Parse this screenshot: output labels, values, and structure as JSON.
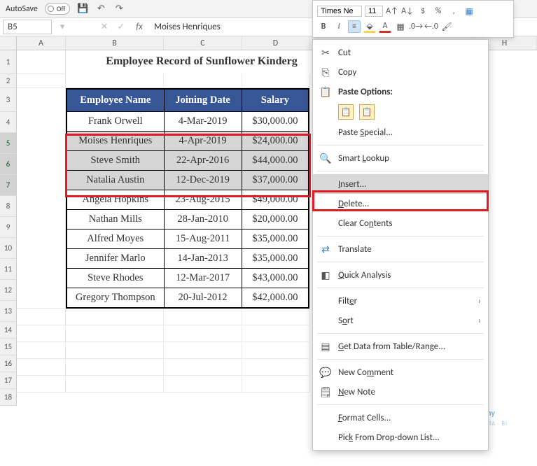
{
  "qat": {
    "autosave_label": "AutoSave",
    "autosave_state": "Off"
  },
  "nameBox": {
    "ref": "B5"
  },
  "formula": {
    "text": "Moises Henriques"
  },
  "miniToolbar": {
    "font_name": "Times Ne",
    "font_size": "11"
  },
  "colHeaders": [
    "A",
    "B",
    "C",
    "D",
    "",
    "H"
  ],
  "rowHeaders": [
    "1",
    "2",
    "3",
    "4",
    "5",
    "6",
    "7",
    "8",
    "9",
    "10",
    "11",
    "12",
    "13",
    "14",
    "15",
    "16",
    "17",
    "18"
  ],
  "title": "Employee Record of Sunflower Kinderg",
  "table": {
    "headers": {
      "name": "Employee Name",
      "date": "Joining Date",
      "salary": "Salary"
    },
    "header_bg": "#375696",
    "header_fg": "#ffffff",
    "rows": [
      {
        "name": "Frank Orwell",
        "date": "4-Mar-2019",
        "salary": "$30,000.00",
        "selected": false
      },
      {
        "name": "Moises Henriques",
        "date": "4-Apr-2019",
        "salary": "$24,000.00",
        "selected": true
      },
      {
        "name": "Steve Smith",
        "date": "22-Apr-2016",
        "salary": "$44,000.00",
        "selected": true
      },
      {
        "name": "Natalia Austin",
        "date": "12-Dec-2019",
        "salary": "$37,000.00",
        "selected": true
      },
      {
        "name": "Angela Hopkins",
        "date": "23-Aug-2015",
        "salary": "$49,000.00",
        "selected": false
      },
      {
        "name": "Nathan Mills",
        "date": "28-Jan-2010",
        "salary": "$20,000.00",
        "selected": false
      },
      {
        "name": "Alfred Moyes",
        "date": "15-Aug-2011",
        "salary": "$35,000.00",
        "selected": false
      },
      {
        "name": "Jennifer Marlo",
        "date": "14-Jan-2013",
        "salary": "$35,000.00",
        "selected": false
      },
      {
        "name": "Steve Rhodes",
        "date": "12-Mar-2017",
        "salary": "$43,000.00",
        "selected": false
      },
      {
        "name": "Gregory Thompson",
        "date": "20-Jul-2012",
        "salary": "$42,000.00",
        "selected": false
      }
    ]
  },
  "contextMenu": {
    "cut": "Cut",
    "copy": "Copy",
    "pasteOptionsHeading": "Paste Options:",
    "pasteSpecial": "Paste Special...",
    "smartLookup": "Smart Lookup",
    "insert": "Insert...",
    "delete": "Delete...",
    "clear": "Clear Contents",
    "translate": "Translate",
    "quickAnalysis": "Quick Analysis",
    "filter": "Filter",
    "sort": "Sort",
    "getData": "Get Data from Table/Range...",
    "newComment": "New Comment",
    "newNote": "New Note",
    "formatCells": "Format Cells...",
    "pickList": "Pick From Drop-down List..."
  },
  "watermark": {
    "brand": "exceldemy",
    "sub": "EXCEL · DATA · BI"
  }
}
